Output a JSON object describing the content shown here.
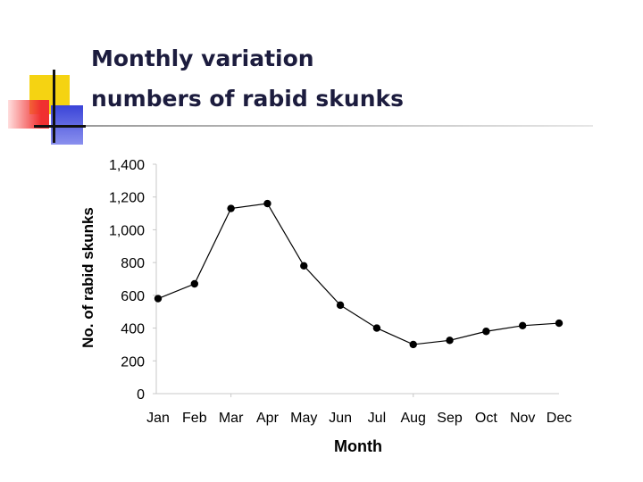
{
  "slide": {
    "title_line1": "Monthly variation",
    "title_line2": "numbers of rabid skunks"
  },
  "colors": {
    "deco_yellow": "#f5d312",
    "deco_red": "#f03030",
    "deco_blue": "#3a44d8",
    "title_text": "#1c1c3e",
    "series": "#000000"
  },
  "chart_data": {
    "type": "line",
    "title": "",
    "xlabel": "Month",
    "ylabel": "No. of rabid skunks",
    "categories": [
      "Jan",
      "Feb",
      "Mar",
      "Apr",
      "May",
      "Jun",
      "Jul",
      "Aug",
      "Sep",
      "Oct",
      "Nov",
      "Dec"
    ],
    "series": [
      {
        "values": [
          580,
          670,
          1130,
          1160,
          780,
          540,
          400,
          300,
          325,
          380,
          415,
          430
        ]
      }
    ],
    "ylim": [
      0,
      1400
    ],
    "yticks": [
      0,
      200,
      400,
      600,
      800,
      1000,
      1200,
      1400
    ],
    "ytick_labels": [
      "0",
      "200",
      "400",
      "600",
      "800",
      "1,000",
      "1,200",
      "1,400"
    ],
    "grid": false,
    "legend": "none"
  }
}
